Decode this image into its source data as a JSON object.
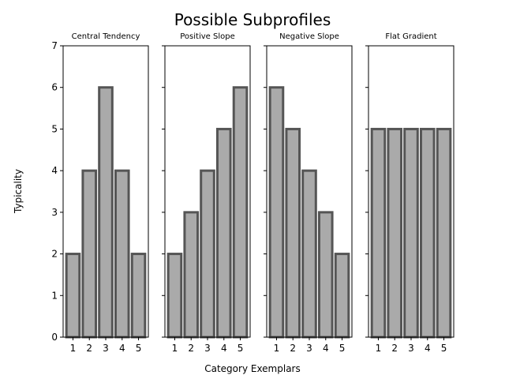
{
  "chart_data": {
    "type": "bar",
    "title": "Possible Subprofiles",
    "xlabel": "Category Exemplars",
    "ylabel": "Typicality",
    "ylim": [
      0,
      7
    ],
    "yticks": [
      "0",
      "1",
      "2",
      "3",
      "4",
      "5",
      "6",
      "7"
    ],
    "grid": false,
    "shared_y": true,
    "bar_color": "#aaaaaa",
    "edge_color": "#555555",
    "categories": [
      "1",
      "2",
      "3",
      "4",
      "5"
    ],
    "panels": [
      {
        "title": "Central Tendency",
        "values": [
          2,
          4,
          6,
          4,
          2
        ]
      },
      {
        "title": "Positive Slope",
        "values": [
          2,
          3,
          4,
          5,
          6
        ]
      },
      {
        "title": "Negative Slope",
        "values": [
          6,
          5,
          4,
          3,
          2
        ]
      },
      {
        "title": "Flat Gradient",
        "values": [
          5,
          5,
          5,
          5,
          5
        ]
      }
    ]
  }
}
